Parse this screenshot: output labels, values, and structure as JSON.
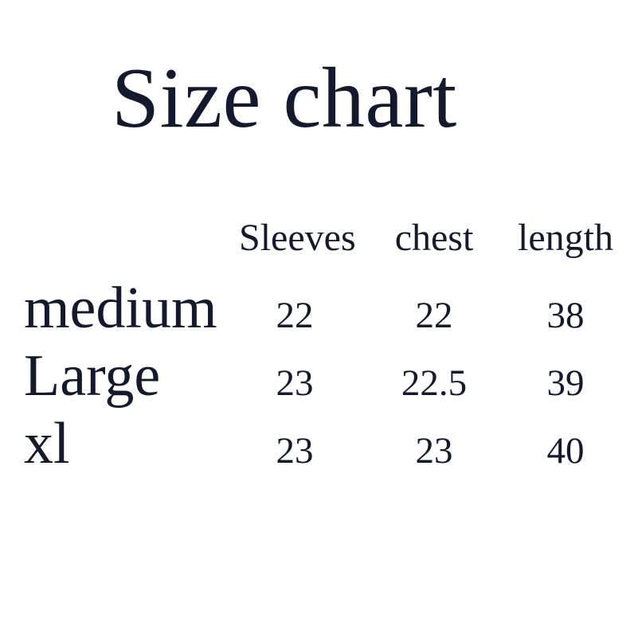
{
  "page": {
    "background_color": "#ffffff",
    "text_color": "#141a2e"
  },
  "title": "Size chart",
  "chart_data": {
    "type": "table",
    "title": "Size chart",
    "columns": [
      "",
      "Sleeves",
      "chest",
      "length"
    ],
    "rows": [
      {
        "size": "medium",
        "sleeves": "22",
        "chest": "22",
        "length": "38"
      },
      {
        "size": "Large",
        "sleeves": "23",
        "chest": "22.5",
        "length": "39"
      },
      {
        "size": "xl",
        "sleeves": "23",
        "chest": "23",
        "length": "40"
      }
    ]
  }
}
